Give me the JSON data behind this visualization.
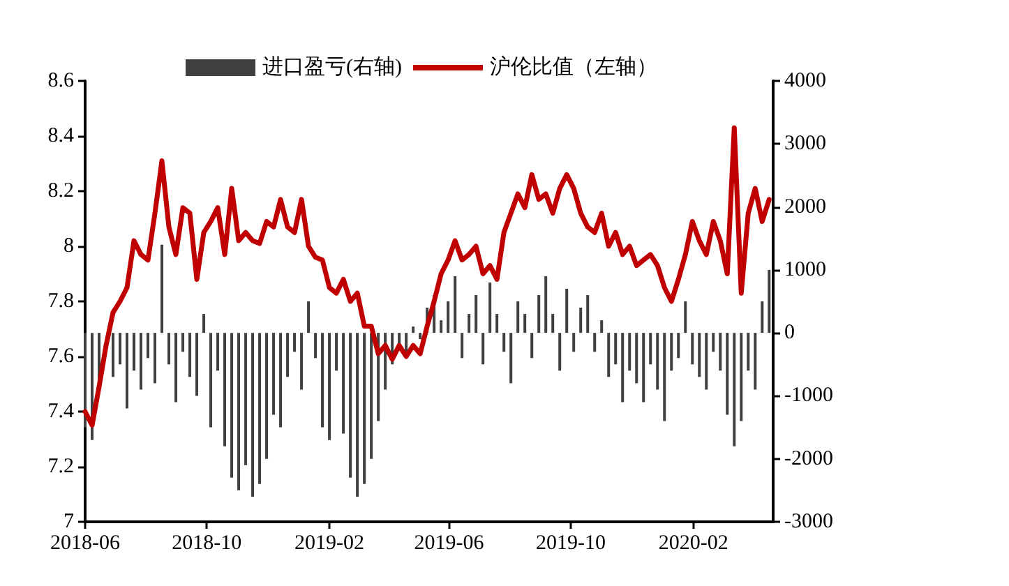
{
  "chart_data": {
    "type": "line",
    "legend": "top",
    "grid": false,
    "marker": "none",
    "line_style": "solid",
    "xlim": [
      "2018-06-01",
      "2020-04-21"
    ],
    "xticks": [
      "2018-06",
      "2018-10",
      "2019-02",
      "2019-06",
      "2019-10",
      "2020-02"
    ],
    "ylim": [
      7,
      8.6
    ],
    "yticks": [
      7,
      7.2,
      7.4,
      7.6,
      7.8,
      8,
      8.2,
      8.4,
      8.6
    ],
    "y2lim": [
      -3000,
      4000
    ],
    "y2ticks": [
      -3000,
      -2000,
      -1000,
      0,
      1000,
      2000,
      3000,
      4000
    ],
    "x": [
      "2018-06-01",
      "2018-06-08",
      "2018-06-15",
      "2018-06-22",
      "2018-06-29",
      "2018-07-06",
      "2018-07-13",
      "2018-07-20",
      "2018-07-27",
      "2018-08-03",
      "2018-08-10",
      "2018-08-17",
      "2018-08-24",
      "2018-08-31",
      "2018-09-07",
      "2018-09-14",
      "2018-09-21",
      "2018-09-28",
      "2018-10-05",
      "2018-10-12",
      "2018-10-19",
      "2018-10-26",
      "2018-11-02",
      "2018-11-09",
      "2018-11-16",
      "2018-11-23",
      "2018-11-30",
      "2018-12-07",
      "2018-12-14",
      "2018-12-21",
      "2018-12-28",
      "2019-01-04",
      "2019-01-11",
      "2019-01-18",
      "2019-01-25",
      "2019-02-01",
      "2019-02-08",
      "2019-02-15",
      "2019-02-22",
      "2019-03-01",
      "2019-03-08",
      "2019-03-15",
      "2019-03-22",
      "2019-03-29",
      "2019-04-05",
      "2019-04-12",
      "2019-04-19",
      "2019-04-26",
      "2019-05-03",
      "2019-05-10",
      "2019-05-17",
      "2019-05-24",
      "2019-05-31",
      "2019-06-07",
      "2019-06-14",
      "2019-06-21",
      "2019-06-28",
      "2019-07-05",
      "2019-07-12",
      "2019-07-19",
      "2019-07-26",
      "2019-08-02",
      "2019-08-09",
      "2019-08-16",
      "2019-08-23",
      "2019-08-30",
      "2019-09-06",
      "2019-09-13",
      "2019-09-20",
      "2019-09-27",
      "2019-10-04",
      "2019-10-11",
      "2019-10-18",
      "2019-10-25",
      "2019-11-01",
      "2019-11-08",
      "2019-11-15",
      "2019-11-22",
      "2019-11-29",
      "2019-12-06",
      "2019-12-13",
      "2019-12-20",
      "2019-12-27",
      "2020-01-03",
      "2020-01-10",
      "2020-01-17",
      "2020-01-24",
      "2020-01-31",
      "2020-02-07",
      "2020-02-14",
      "2020-02-21",
      "2020-02-28",
      "2020-03-06",
      "2020-03-13",
      "2020-03-20",
      "2020-03-27",
      "2020-04-03",
      "2020-04-10",
      "2020-04-17"
    ],
    "series": [
      {
        "name": "进口盈亏(右轴)",
        "type": "bar",
        "axis": "y2",
        "color": "#404040",
        "values": [
          -1500,
          -1700,
          -800,
          null,
          -700,
          -500,
          -1200,
          -600,
          -900,
          -400,
          -800,
          1400,
          -500,
          -1100,
          -300,
          -700,
          -1000,
          300,
          -1500,
          -600,
          -1800,
          -2300,
          -2500,
          -2100,
          -2600,
          -2400,
          -2000,
          -1300,
          -1500,
          -700,
          -300,
          -900,
          500,
          -400,
          -1500,
          -1700,
          -600,
          -1600,
          -2300,
          -2600,
          -2400,
          -2000,
          -1400,
          -900,
          -500,
          -200,
          -300,
          100,
          -100,
          400,
          600,
          200,
          500,
          900,
          -400,
          300,
          600,
          -500,
          800,
          300,
          -300,
          -800,
          500,
          300,
          -400,
          600,
          900,
          300,
          -600,
          700,
          -300,
          400,
          600,
          -300,
          200,
          -700,
          -500,
          -1100,
          -600,
          -800,
          -1100,
          -500,
          -900,
          -1400,
          -600,
          -400,
          500,
          -500,
          -700,
          -900,
          -300,
          -600,
          -1300,
          -1800,
          -1400,
          -600,
          -900,
          500,
          1000
        ]
      },
      {
        "name": "沪伦比值（左轴）",
        "color": "#c00000",
        "values": [
          7.4,
          7.35,
          7.49,
          7.64,
          7.76,
          7.8,
          7.85,
          8.02,
          7.97,
          7.95,
          8.12,
          8.31,
          8.07,
          7.97,
          8.14,
          8.12,
          7.88,
          8.05,
          8.09,
          8.14,
          7.97,
          8.21,
          8.02,
          8.05,
          8.02,
          8.01,
          8.09,
          8.07,
          8.17,
          8.07,
          8.05,
          8.17,
          8.0,
          7.96,
          7.95,
          7.85,
          7.83,
          7.88,
          7.8,
          7.83,
          7.71,
          7.71,
          7.61,
          7.64,
          7.59,
          7.64,
          7.6,
          7.64,
          7.61,
          7.71,
          7.8,
          7.9,
          7.95,
          8.02,
          7.95,
          7.97,
          8.0,
          7.9,
          7.93,
          7.88,
          8.05,
          8.12,
          8.19,
          8.14,
          8.26,
          8.17,
          8.19,
          8.12,
          8.21,
          8.26,
          8.21,
          8.12,
          8.07,
          8.05,
          8.12,
          8.0,
          8.05,
          7.97,
          8.0,
          7.93,
          7.95,
          7.97,
          7.93,
          7.85,
          7.8,
          7.88,
          7.97,
          8.09,
          8.02,
          7.97,
          8.09,
          8.02,
          7.9,
          8.43,
          7.83,
          8.12,
          8.21,
          8.09,
          8.17
        ]
      }
    ]
  }
}
